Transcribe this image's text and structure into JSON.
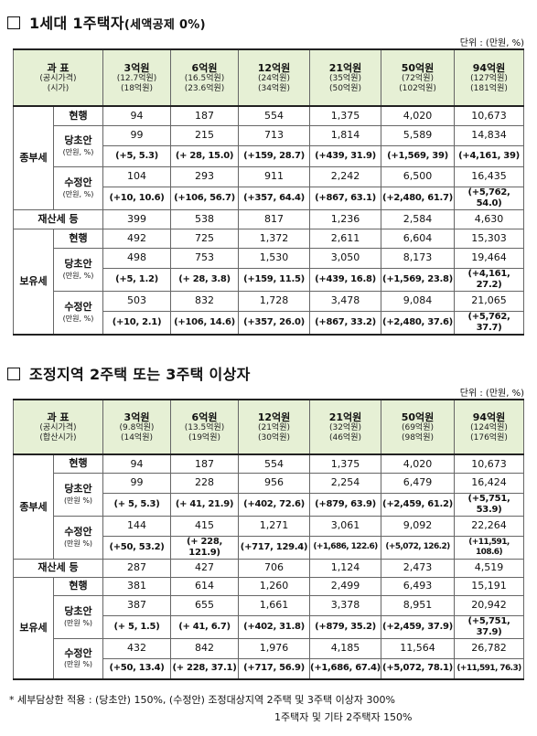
{
  "section1": {
    "title": "1세대 1주택자",
    "title_suffix": "(세액공제 0%)",
    "unit": "단위 : (만원, %)",
    "header": {
      "label1": "과 표",
      "label2": "(공시가격)",
      "label3": "(시가)",
      "cols": [
        {
          "main": "3억원",
          "sub1": "(12.7억원)",
          "sub2": "(18억원)"
        },
        {
          "main": "6억원",
          "sub1": "(16.5억원)",
          "sub2": "(23.6억원)"
        },
        {
          "main": "12억원",
          "sub1": "(24억원)",
          "sub2": "(34억원)"
        },
        {
          "main": "21억원",
          "sub1": "(35억원)",
          "sub2": "(50억원)"
        },
        {
          "main": "50억원",
          "sub1": "(72억원)",
          "sub2": "(102억원)"
        },
        {
          "main": "94억원",
          "sub1": "(127억원)",
          "sub2": "(181억원)"
        }
      ]
    },
    "groups": {
      "jongbu": "종부세",
      "property": "재산세 등",
      "holding": "보유세"
    },
    "labels": {
      "current": "현행",
      "original": "당초안",
      "revised": "수정안",
      "unit_note": "(만원, %)"
    },
    "jongbu": {
      "current": [
        "94",
        "187",
        "554",
        "1,375",
        "4,020",
        "10,673"
      ],
      "original": [
        "99",
        "215",
        "713",
        "1,814",
        "5,589",
        "14,834"
      ],
      "original_delta": [
        "(+5, 5.3)",
        "(+ 28, 15.0)",
        "(+159, 28.7)",
        "(+439, 31.9)",
        "(+1,569, 39)",
        "(+4,161, 39)"
      ],
      "revised": [
        "104",
        "293",
        "911",
        "2,242",
        "6,500",
        "16,435"
      ],
      "revised_delta": [
        "(+10, 10.6)",
        "(+106, 56.7)",
        "(+357, 64.4)",
        "(+867, 63.1)",
        "(+2,480, 61.7)",
        "(+5,762, 54.0)"
      ]
    },
    "property_tax": [
      "399",
      "538",
      "817",
      "1,236",
      "2,584",
      "4,630"
    ],
    "holding": {
      "current": [
        "492",
        "725",
        "1,372",
        "2,611",
        "6,604",
        "15,303"
      ],
      "original": [
        "498",
        "753",
        "1,530",
        "3,050",
        "8,173",
        "19,464"
      ],
      "original_delta": [
        "(+5, 1.2)",
        "(+ 28, 3.8)",
        "(+159, 11.5)",
        "(+439, 16.8)",
        "(+1,569, 23.8)",
        "(+4,161, 27.2)"
      ],
      "revised": [
        "503",
        "832",
        "1,728",
        "3,478",
        "9,084",
        "21,065"
      ],
      "revised_delta": [
        "(+10, 2.1)",
        "(+106, 14.6)",
        "(+357, 26.0)",
        "(+867, 33.2)",
        "(+2,480, 37.6)",
        "(+5,762, 37.7)"
      ]
    }
  },
  "section2": {
    "title": "조정지역 2주택 또는 3주택 이상자",
    "unit": "단위 : (만원, %)",
    "header": {
      "label1": "과 표",
      "label2": "(공시가격)",
      "label3": "(합산시가)",
      "cols": [
        {
          "main": "3억원",
          "sub1": "(9.8억원)",
          "sub2": "(14억원)"
        },
        {
          "main": "6억원",
          "sub1": "(13.5억원)",
          "sub2": "(19억원)"
        },
        {
          "main": "12억원",
          "sub1": "(21억원)",
          "sub2": "(30억원)"
        },
        {
          "main": "21억원",
          "sub1": "(32억원)",
          "sub2": "(46억원)"
        },
        {
          "main": "50억원",
          "sub1": "(69억원)",
          "sub2": "(98억원)"
        },
        {
          "main": "94억원",
          "sub1": "(124억원)",
          "sub2": "(176억원)"
        }
      ]
    },
    "groups": {
      "jongbu": "종부세",
      "property": "재산세 등",
      "holding": "보유세"
    },
    "labels": {
      "current": "현행",
      "original": "당초안",
      "revised": "수정안",
      "unit_note": "(만원 %)"
    },
    "jongbu": {
      "current": [
        "94",
        "187",
        "554",
        "1,375",
        "4,020",
        "10,673"
      ],
      "original": [
        "99",
        "228",
        "956",
        "2,254",
        "6,479",
        "16,424"
      ],
      "original_delta": [
        "(+ 5, 5.3)",
        "(+ 41, 21.9)",
        "(+402, 72.6)",
        "(+879, 63.9)",
        "(+2,459, 61.2)",
        "(+5,751, 53.9)"
      ],
      "revised": [
        "144",
        "415",
        "1,271",
        "3,061",
        "9,092",
        "22,264"
      ],
      "revised_delta": [
        "(+50, 53.2)",
        "(+ 228, 121.9)",
        "(+717, 129.4)",
        "(+1,686, 122.6)",
        "(+5,072, 126.2)",
        "(+11,591, 108.6)"
      ]
    },
    "property_tax": [
      "287",
      "427",
      "706",
      "1,124",
      "2,473",
      "4,519"
    ],
    "holding": {
      "current": [
        "381",
        "614",
        "1,260",
        "2,499",
        "6,493",
        "15,191"
      ],
      "original": [
        "387",
        "655",
        "1,661",
        "3,378",
        "8,951",
        "20,942"
      ],
      "original_delta": [
        "(+ 5, 1.5)",
        "(+ 41, 6.7)",
        "(+402, 31.8)",
        "(+879, 35.2)",
        "(+2,459, 37.9)",
        "(+5,751, 37.9)"
      ],
      "revised": [
        "432",
        "842",
        "1,976",
        "4,185",
        "11,564",
        "26,782"
      ],
      "revised_delta": [
        "(+50, 13.4)",
        "(+ 228, 37.1)",
        "(+717, 56.9)",
        "(+1,686, 67.4)",
        "(+5,072, 78.1)",
        "(+11,591, 76.3)"
      ]
    }
  },
  "footnote": {
    "line1": "* 세부담상한 적용 : (당초안) 150%, (수정안) 조정대상지역 2주택 및 3주택 이상자 300%",
    "line2": "1주택자 및 기타 2주택자 150%"
  }
}
